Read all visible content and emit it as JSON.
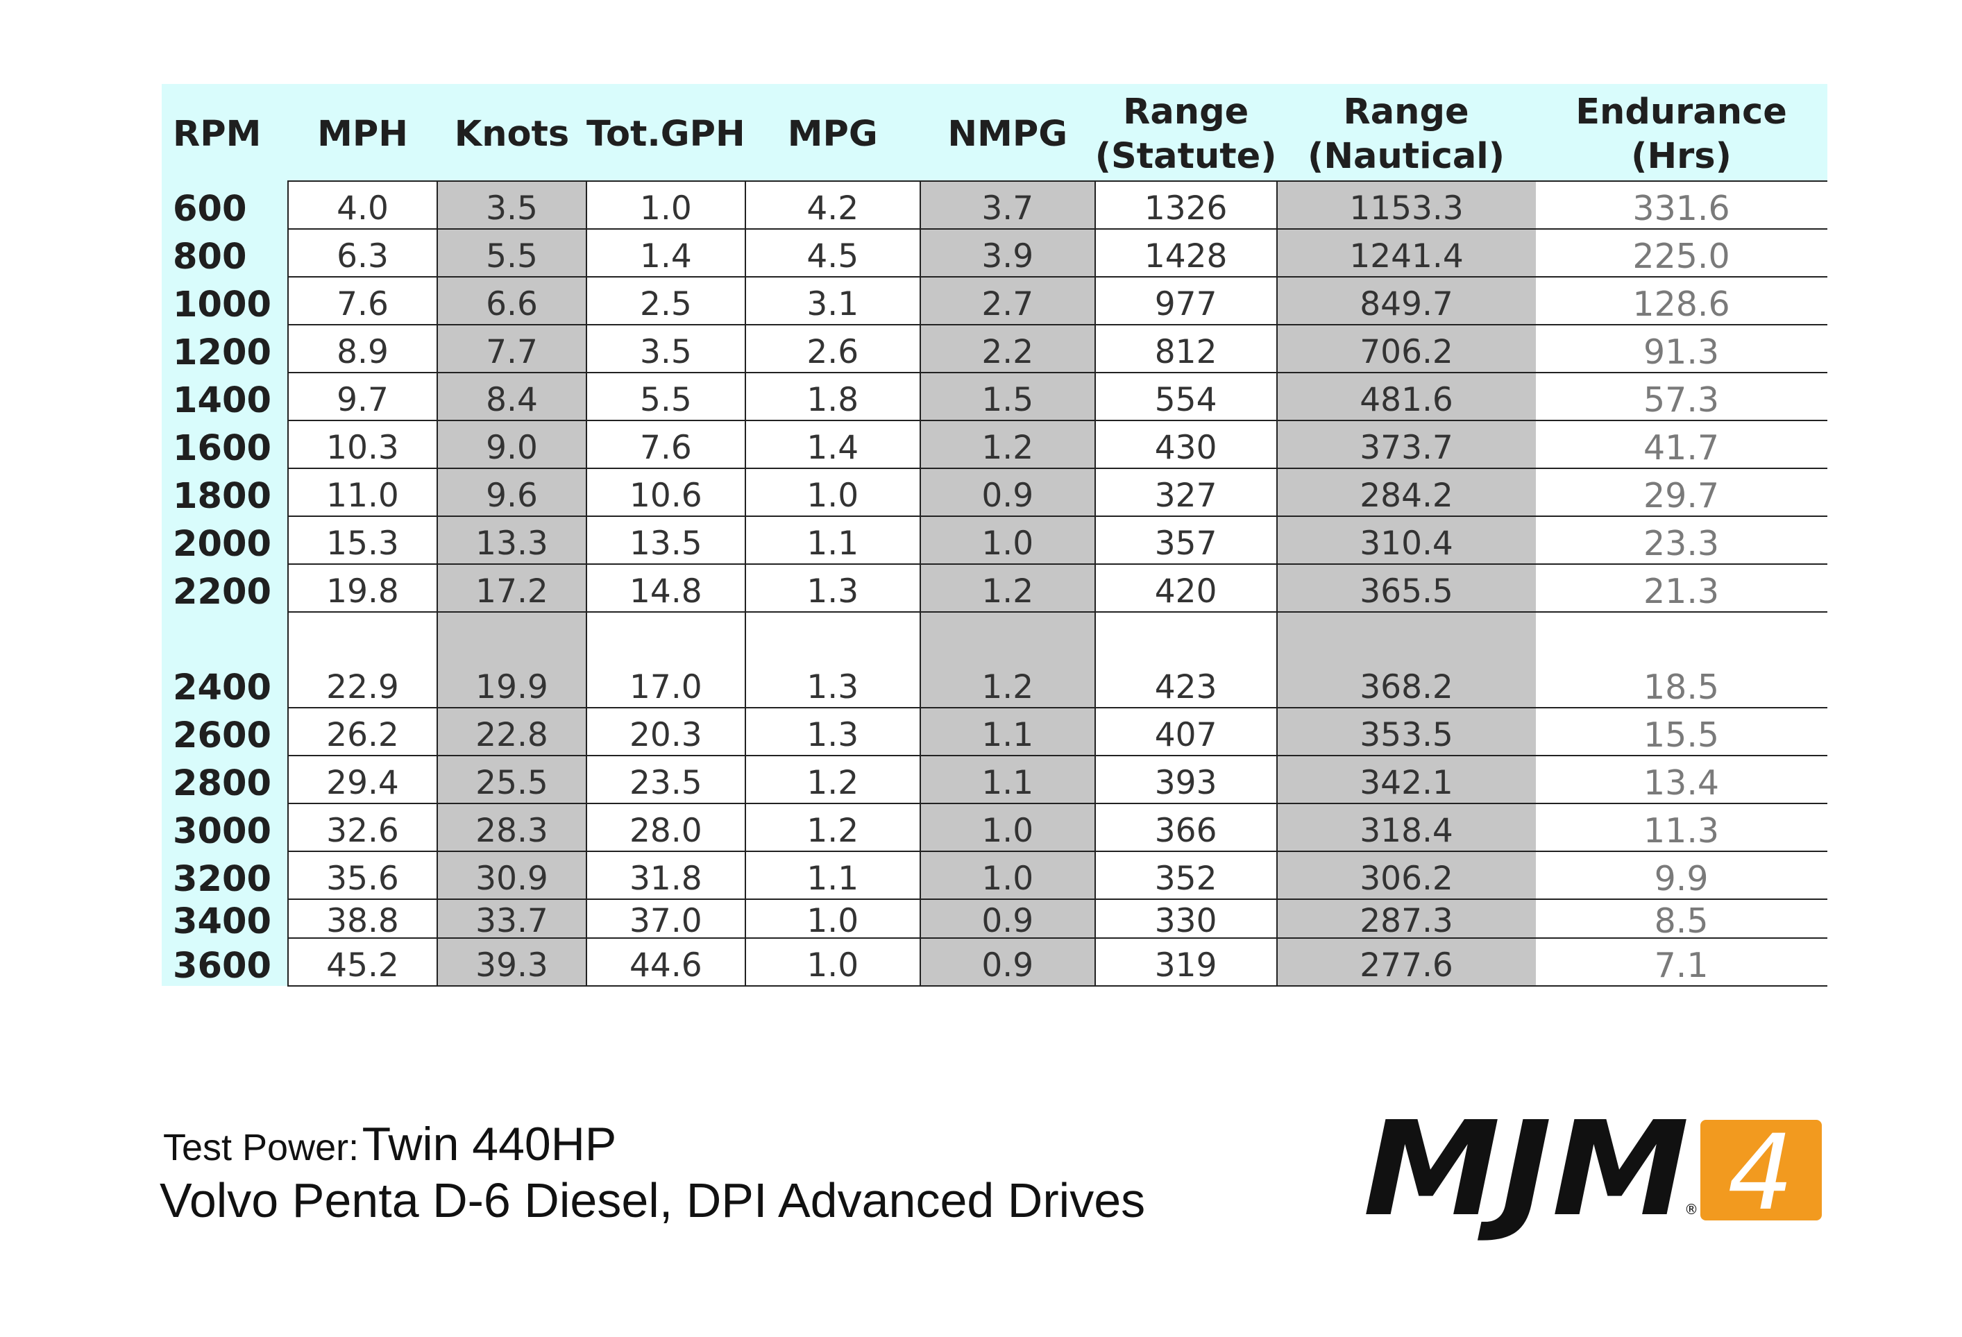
{
  "table": {
    "headers": {
      "rpm": "RPM",
      "mph": "MPH",
      "knots": "Knots",
      "gph": "Tot.GPH",
      "mpg": "MPG",
      "nmpg": "NMPG",
      "range_statute_1": "Range",
      "range_statute_2": "(Statute)",
      "range_nautical_1": "Range",
      "range_nautical_2": "(Nautical)",
      "endurance_1": "Endurance",
      "endurance_2": "(Hrs)"
    },
    "rows": [
      [
        "600",
        "4.0",
        "3.5",
        "1.0",
        "4.2",
        "3.7",
        "1326",
        "1153.3",
        "331.6"
      ],
      [
        "800",
        "6.3",
        "5.5",
        "1.4",
        "4.5",
        "3.9",
        "1428",
        "1241.4",
        "225.0"
      ],
      [
        "1000",
        "7.6",
        "6.6",
        "2.5",
        "3.1",
        "2.7",
        "977",
        "849.7",
        "128.6"
      ],
      [
        "1200",
        "8.9",
        "7.7",
        "3.5",
        "2.6",
        "2.2",
        "812",
        "706.2",
        "91.3"
      ],
      [
        "1400",
        "9.7",
        "8.4",
        "5.5",
        "1.8",
        "1.5",
        "554",
        "481.6",
        "57.3"
      ],
      [
        "1600",
        "10.3",
        "9.0",
        "7.6",
        "1.4",
        "1.2",
        "430",
        "373.7",
        "41.7"
      ],
      [
        "1800",
        "11.0",
        "9.6",
        "10.6",
        "1.0",
        "0.9",
        "327",
        "284.2",
        "29.7"
      ],
      [
        "2000",
        "15.3",
        "13.3",
        "13.5",
        "1.1",
        "1.0",
        "357",
        "310.4",
        "23.3"
      ],
      [
        "2200",
        "19.8",
        "17.2",
        "14.8",
        "1.3",
        "1.2",
        "420",
        "365.5",
        "21.3"
      ],
      [
        "2400",
        "22.9",
        "19.9",
        "17.0",
        "1.3",
        "1.2",
        "423",
        "368.2",
        "18.5"
      ],
      [
        "2600",
        "26.2",
        "22.8",
        "20.3",
        "1.3",
        "1.1",
        "407",
        "353.5",
        "15.5"
      ],
      [
        "2800",
        "29.4",
        "25.5",
        "23.5",
        "1.2",
        "1.1",
        "393",
        "342.1",
        "13.4"
      ],
      [
        "3000",
        "32.6",
        "28.3",
        "28.0",
        "1.2",
        "1.0",
        "366",
        "318.4",
        "11.3"
      ],
      [
        "3200",
        "35.6",
        "30.9",
        "31.8",
        "1.1",
        "1.0",
        "352",
        "306.2",
        "9.9"
      ],
      [
        "3400",
        "38.8",
        "33.7",
        "37.0",
        "1.0",
        "0.9",
        "330",
        "287.3",
        "8.5"
      ],
      [
        "3600",
        "45.2",
        "39.3",
        "44.6",
        "1.0",
        "0.9",
        "319",
        "277.6",
        "7.1"
      ]
    ]
  },
  "caption": {
    "label": "Test Power:",
    "value": "Twin 440HP",
    "line2": "Volvo Penta D-6 Diesel, DPI Advanced Drives"
  },
  "logo": {
    "text": "MJM",
    "badge": "4",
    "registered": "®",
    "badge_color": "#f29a1f",
    "text_color": "#111111"
  }
}
